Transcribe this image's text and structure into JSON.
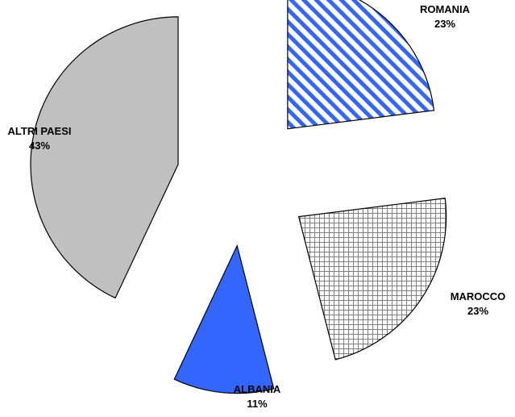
{
  "chart_data": {
    "type": "pie",
    "exploded": true,
    "slices": [
      {
        "label": "ROMANIA",
        "value": 23,
        "value_label": "23%",
        "pattern": "diagonal-stripes",
        "color": "#3366FF"
      },
      {
        "label": "MAROCCO",
        "value": 23,
        "value_label": "23%",
        "pattern": "grid",
        "color": "#808080"
      },
      {
        "label": "ALBANIA",
        "value": 11,
        "value_label": "11%",
        "pattern": "solid",
        "color": "#3366FF"
      },
      {
        "label": "ALTRI PAESI",
        "value": 43,
        "value_label": "43%",
        "pattern": "solid",
        "color": "#C0C0C0"
      }
    ]
  }
}
